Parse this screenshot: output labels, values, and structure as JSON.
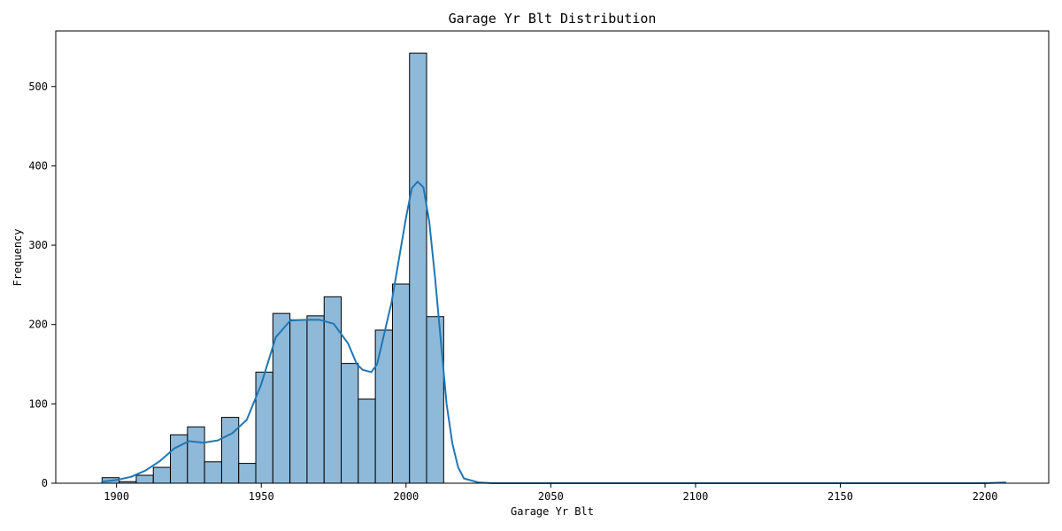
{
  "colors": {
    "bar_fill": "#8fb9d9",
    "bar_edge": "#000000",
    "kde_line": "#1f77b4",
    "axis": "#000000"
  },
  "chart_data": {
    "type": "bar",
    "title": "Garage Yr Blt Distribution",
    "xlabel": "Garage Yr Blt",
    "ylabel": "Frequency",
    "xlim": [
      1879,
      2222
    ],
    "ylim": [
      0,
      570
    ],
    "x_ticks": [
      1900,
      1950,
      2000,
      2050,
      2100,
      2150,
      2200
    ],
    "y_ticks": [
      0,
      100,
      200,
      300,
      400,
      500
    ],
    "bin_width": 5.9,
    "bins": [
      {
        "start": 1895.0,
        "count": 7
      },
      {
        "start": 1900.9,
        "count": 2
      },
      {
        "start": 1906.8,
        "count": 10
      },
      {
        "start": 1912.7,
        "count": 20
      },
      {
        "start": 1918.6,
        "count": 61
      },
      {
        "start": 1924.5,
        "count": 71
      },
      {
        "start": 1930.4,
        "count": 27
      },
      {
        "start": 1936.3,
        "count": 83
      },
      {
        "start": 1942.2,
        "count": 25
      },
      {
        "start": 1948.1,
        "count": 140
      },
      {
        "start": 1954.0,
        "count": 214
      },
      {
        "start": 1959.9,
        "count": 206
      },
      {
        "start": 1965.8,
        "count": 211
      },
      {
        "start": 1971.7,
        "count": 235
      },
      {
        "start": 1977.6,
        "count": 151
      },
      {
        "start": 1983.5,
        "count": 106
      },
      {
        "start": 1989.4,
        "count": 193
      },
      {
        "start": 1995.3,
        "count": 251
      },
      {
        "start": 2001.2,
        "count": 542
      },
      {
        "start": 2007.1,
        "count": 210
      }
    ],
    "kde": {
      "x": [
        1895,
        1900,
        1905,
        1910,
        1915,
        1920,
        1925,
        1930,
        1935,
        1940,
        1945,
        1950,
        1955,
        1960,
        1965,
        1970,
        1975,
        1980,
        1983,
        1985,
        1988,
        1990,
        1995,
        2000,
        2002,
        2004,
        2006,
        2008,
        2010,
        2012,
        2014,
        2016,
        2018,
        2020,
        2025,
        2030,
        2050,
        2100,
        2150,
        2200,
        2207
      ],
      "y": [
        2,
        4,
        8,
        16,
        28,
        44,
        53,
        51,
        54,
        63,
        80,
        125,
        184,
        205,
        206,
        206,
        201,
        176,
        150,
        143,
        140,
        150,
        228,
        335,
        372,
        380,
        373,
        330,
        260,
        180,
        100,
        50,
        20,
        6,
        1,
        0,
        0,
        0,
        0,
        0,
        1
      ]
    }
  }
}
